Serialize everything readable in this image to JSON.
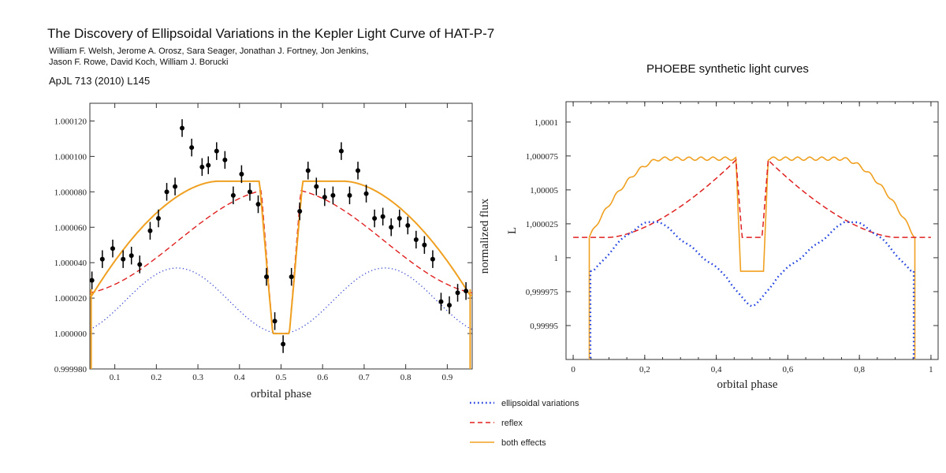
{
  "header": {
    "title": "The Discovery of Ellipsoidal Variations in the Kepler Light Curve of HAT-P-7",
    "authors_line1": "William F. Welsh, Jerome A. Orosz, Sara Seager, Jonathan J. Fortney, Jon Jenkins,",
    "authors_line2": "Jason F. Rowe, David Koch, William J. Borucki",
    "journal": "ApJL 713 (2010) L145"
  },
  "right_panel_title": "PHOEBE synthetic light curves",
  "legend": [
    {
      "label": "ellipsoidal variations",
      "color": "#1f3fe0",
      "style": "dotted"
    },
    {
      "label": "reflex",
      "color": "#e02020",
      "style": "dashed"
    },
    {
      "label": "both effects",
      "color": "#f0a020",
      "style": "solid"
    }
  ],
  "chart_data": [
    {
      "type": "scatter",
      "xlabel": "orbital phase",
      "ylabel": "normalized flux",
      "xlim": [
        0.04,
        0.96
      ],
      "ylim": [
        0.99998,
        1.00013
      ],
      "x_ticks": [
        "0.1",
        "0.2",
        "0.3",
        "0.4",
        "0.5",
        "0.6",
        "0.7",
        "0.8",
        "0.9"
      ],
      "y_ticks": [
        "0.999980",
        "1.000000",
        "1.000020",
        "1.000040",
        "1.000060",
        "1.000080",
        "1.000100",
        "1.000120"
      ],
      "observations": {
        "x": [
          0.045,
          0.07,
          0.095,
          0.12,
          0.14,
          0.16,
          0.185,
          0.205,
          0.225,
          0.245,
          0.262,
          0.285,
          0.31,
          0.325,
          0.345,
          0.365,
          0.385,
          0.405,
          0.425,
          0.445,
          0.465,
          0.485,
          0.505,
          0.525,
          0.545,
          0.565,
          0.585,
          0.605,
          0.625,
          0.645,
          0.665,
          0.685,
          0.705,
          0.725,
          0.745,
          0.765,
          0.785,
          0.805,
          0.825,
          0.845,
          0.865,
          0.885,
          0.905,
          0.925,
          0.945
        ],
        "y": [
          1.00003,
          1.000042,
          1.000048,
          1.000042,
          1.000044,
          1.000039,
          1.000058,
          1.000065,
          1.00008,
          1.000083,
          1.000116,
          1.000105,
          1.000094,
          1.000095,
          1.000103,
          1.000098,
          1.000078,
          1.00009,
          1.00008,
          1.000073,
          1.000032,
          1.000007,
          0.999994,
          1.000032,
          1.000069,
          1.000092,
          1.000083,
          1.000077,
          1.000078,
          1.000103,
          1.000078,
          1.000092,
          1.000079,
          1.000065,
          1.000066,
          1.00006,
          1.000065,
          1.000061,
          1.000053,
          1.00005,
          1.000042,
          1.000018,
          1.000016,
          1.000023,
          1.000024
        ],
        "err": 5e-06
      },
      "models": [
        {
          "name": "ellipsoidal variations",
          "style": "dotted",
          "color": "#3040d0",
          "amplitude": 1.85e-05,
          "offset": 1.0000185
        },
        {
          "name": "reflex",
          "style": "dashed",
          "color": "#e02020",
          "amplitude": 3e-05,
          "offset": 1.000052,
          "eclipse_floor": 1.0
        },
        {
          "name": "both effects",
          "style": "solid",
          "color": "#f0a020",
          "plateau": 1.000086,
          "min": 1.0000215,
          "eclipse_floor": 1.0
        }
      ]
    },
    {
      "type": "line",
      "xlabel": "orbital phase",
      "ylabel": "L",
      "xlim": [
        -0.02,
        1.02
      ],
      "ylim": [
        0.999925,
        1.000115
      ],
      "x_ticks": [
        "0",
        "0,2",
        "0,4",
        "0,6",
        "0,8",
        "1"
      ],
      "y_ticks": [
        "0,99995",
        "0,999975",
        "1",
        "1,000025",
        "1,00005",
        "1,000075",
        "1,0001"
      ],
      "series": [
        {
          "name": "ellipsoidal variations",
          "style": "dotted",
          "color": "#1f3fe0",
          "peak": 1.000027,
          "dip": 0.999965,
          "edge": 0.99999
        },
        {
          "name": "reflex",
          "style": "dashed",
          "color": "#e02020",
          "peak": 1.000072,
          "base": 1.000015
        },
        {
          "name": "both effects",
          "style": "solid",
          "color": "#f0a020",
          "plateau": 1.000073,
          "eclipse": 0.99999,
          "edge": 1.000015
        }
      ]
    }
  ]
}
